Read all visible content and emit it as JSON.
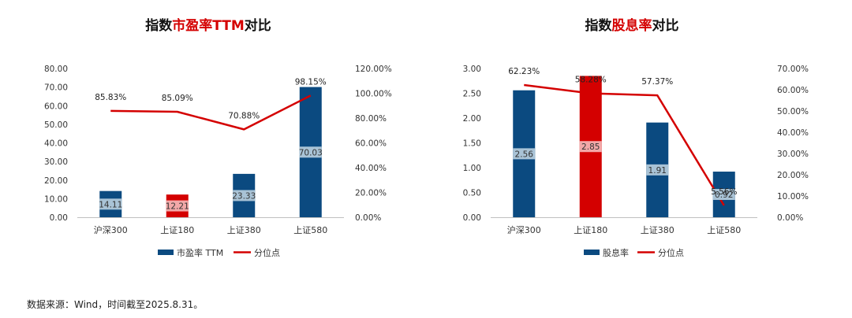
{
  "chart_data": [
    {
      "type": "bar",
      "title_prefix": "指数",
      "title_highlight": "市盈率TTM",
      "title_suffix": "对比",
      "categories": [
        "沪深300",
        "上证180",
        "上证380",
        "上证580"
      ],
      "series": [
        {
          "name": "市盈率 TTM",
          "type": "bar",
          "axis": "left",
          "values": [
            14.11,
            12.21,
            23.33,
            70.03
          ],
          "labels": [
            "14.11",
            "12.21",
            "23.33",
            "70.03"
          ]
        },
        {
          "name": "分位点",
          "type": "line",
          "axis": "right",
          "values": [
            85.83,
            85.09,
            70.88,
            98.15
          ],
          "labels": [
            "85.83%",
            "85.09%",
            "70.88%",
            "98.15%"
          ]
        }
      ],
      "y_left": {
        "min": 0,
        "max": 80,
        "ticks": [
          "0.00",
          "10.00",
          "20.00",
          "30.00",
          "40.00",
          "50.00",
          "60.00",
          "70.00",
          "80.00"
        ]
      },
      "y_right": {
        "min": 0,
        "max": 120,
        "ticks": [
          "0.00%",
          "20.00%",
          "40.00%",
          "60.00%",
          "80.00%",
          "100.00%",
          "120.00%"
        ]
      },
      "highlight_category": "上证180",
      "legend_position": "bottom"
    },
    {
      "type": "bar",
      "title_prefix": "指数",
      "title_highlight": "股息率",
      "title_suffix": "对比",
      "categories": [
        "沪深300",
        "上证180",
        "上证380",
        "上证580"
      ],
      "series": [
        {
          "name": "股息率",
          "type": "bar",
          "axis": "left",
          "values": [
            2.56,
            2.85,
            1.91,
            0.92
          ],
          "labels": [
            "2.56",
            "2.85",
            "1.91",
            "0.92"
          ]
        },
        {
          "name": "分位点",
          "type": "line",
          "axis": "right",
          "values": [
            62.23,
            58.28,
            57.37,
            5.56
          ],
          "labels": [
            "62.23%",
            "58.28%",
            "57.37%",
            "5.56%"
          ]
        }
      ],
      "y_left": {
        "min": 0,
        "max": 3,
        "ticks": [
          "0.00",
          "0.50",
          "1.00",
          "1.50",
          "2.00",
          "2.50",
          "3.00"
        ]
      },
      "y_right": {
        "min": 0,
        "max": 70,
        "ticks": [
          "0.00%",
          "10.00%",
          "20.00%",
          "30.00%",
          "40.00%",
          "50.00%",
          "60.00%",
          "70.00%"
        ]
      },
      "highlight_category": "上证180",
      "legend_position": "bottom"
    }
  ],
  "colors": {
    "bar": "#0b4a80",
    "highlight": "#d40000",
    "line": "#d40000",
    "label_box_blue": "#a9c3d6",
    "label_box_red": "#f2a8a8"
  },
  "footnote": "数据来源：Wind，时间截至2025.8.31。"
}
